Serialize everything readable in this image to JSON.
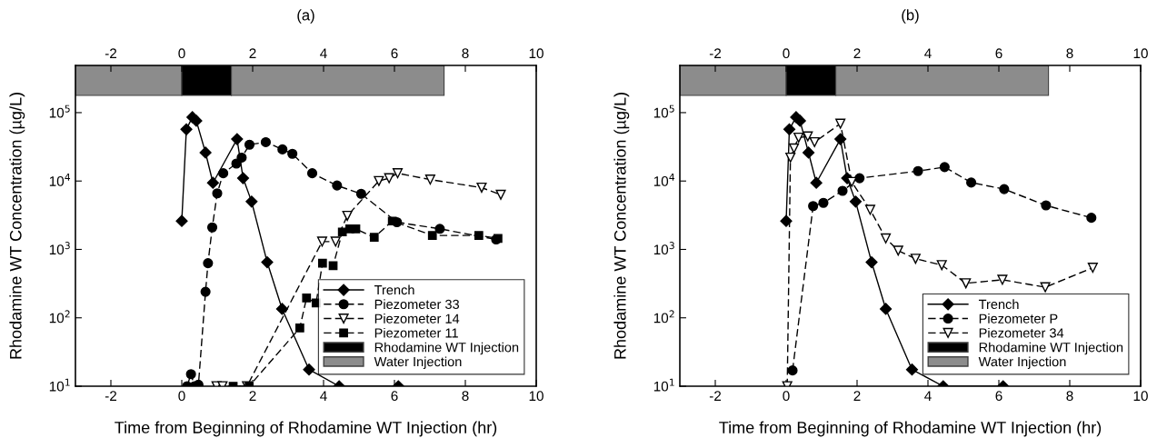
{
  "chart_data": [
    {
      "type": "line",
      "title": "(a)",
      "xlabel": "Time from Beginning of Rhodamine WT Injection (hr)",
      "ylabel": "Rhodamine WT Concentration (µg/L)",
      "log": "y",
      "grid": false,
      "legend": "bottom right",
      "xlim": [
        -3,
        10
      ],
      "xticks": [
        -2,
        0,
        2,
        4,
        6,
        8,
        10
      ],
      "x2lim": [
        -3,
        10
      ],
      "x2ticks": [
        -2,
        0,
        2,
        4,
        6,
        8,
        10
      ],
      "ylim": [
        10,
        490000
      ],
      "yticks": [
        {
          "value": 10,
          "label": "10$^{1}$"
        },
        {
          "value": 100,
          "label": "10$^{2}$"
        },
        {
          "value": 1000,
          "label": "10$^{3}$"
        },
        {
          "value": 10000,
          "label": "10$^{4}$"
        },
        {
          "value": 100000,
          "label": "10$^{5}$"
        }
      ],
      "bands": [
        {
          "axis": "x",
          "from": -3,
          "to": 0,
          "color": "#8c8c8c"
        },
        {
          "axis": "x",
          "from": 0,
          "to": 1.4,
          "label": "Rhodamine WT Injection",
          "color": "#000000"
        },
        {
          "axis": "x",
          "from": 1.4,
          "to": 7.4,
          "label": "Water Injection",
          "color": "#8c8c8c"
        }
      ],
      "series": [
        {
          "name": "Trench",
          "color": "#000000",
          "marker": "diamond",
          "line_style": "solid",
          "x": [
            0,
            0.13,
            0.3,
            0.41,
            0.67,
            0.88,
            1.56,
            1.73,
            1.97,
            2.41,
            2.83,
            3.59,
            4.44,
            6.11
          ],
          "values": [
            2600,
            57000,
            86000,
            76000,
            26000,
            9400,
            41000,
            11000,
            5000,
            650,
            135,
            17.5,
            10,
            10
          ]
        },
        {
          "name": "Piezometer 33",
          "color": "#000000",
          "marker": "circle",
          "line_style": "dashed",
          "x": [
            0.15,
            0.26,
            0.36,
            0.47,
            0.67,
            0.74,
            0.86,
            1.0,
            1.17,
            1.54,
            1.69,
            1.91,
            2.37,
            2.84,
            3.12,
            3.68,
            4.38,
            5.06,
            6.07,
            7.28,
            8.87
          ],
          "values": [
            10,
            15,
            10,
            10.5,
            240,
            630,
            2100,
            6600,
            13000,
            18000,
            22000,
            34000,
            37000,
            29000,
            25000,
            13000,
            8600,
            6500,
            2500,
            2000,
            1400
          ]
        },
        {
          "name": "Piezometer 14",
          "color": "#000000",
          "marker": "triangle",
          "line_style": "dashed",
          "x": [
            0.98,
            1.15,
            1.84,
            3.96,
            4.34,
            4.67,
            5.56,
            5.85,
            6.09,
            7.01,
            8.46,
            9.0
          ],
          "values": [
            10,
            10,
            10,
            1300,
            1300,
            3100,
            10000,
            11000,
            13000,
            10500,
            8000,
            6300
          ]
        },
        {
          "name": "Piezometer 11",
          "color": "#000000",
          "marker": "square",
          "line_style": "dashed",
          "x": [
            1.45,
            1.9,
            3.33,
            3.52,
            3.79,
            3.97,
            4.27,
            4.53,
            4.74,
            4.91,
            5.43,
            5.94,
            7.07,
            8.38,
            8.92
          ],
          "values": [
            10,
            10,
            71,
            195,
            165,
            630,
            580,
            1800,
            2000,
            2000,
            1500,
            2600,
            1600,
            1600,
            1450
          ]
        }
      ]
    },
    {
      "type": "line",
      "title": "(b)",
      "xlabel": "Time from Beginning of Rhodamine WT Injection (hr)",
      "ylabel": "Rhodamine WT Concentration (µg/L)",
      "log": "y",
      "grid": false,
      "legend": "bottom right",
      "xlim": [
        -3,
        10
      ],
      "xticks": [
        -2,
        0,
        2,
        4,
        6,
        8,
        10
      ],
      "x2lim": [
        -3,
        10
      ],
      "x2ticks": [
        -2,
        0,
        2,
        4,
        6,
        8,
        10
      ],
      "ylim": [
        10,
        490000
      ],
      "yticks": [
        {
          "value": 10,
          "label": "10$^{1}$"
        },
        {
          "value": 100,
          "label": "10$^{2}$"
        },
        {
          "value": 1000,
          "label": "10$^{3}$"
        },
        {
          "value": 10000,
          "label": "10$^{4}$"
        },
        {
          "value": 100000,
          "label": "10$^{5}$"
        }
      ],
      "bands": [
        {
          "axis": "x",
          "from": -3,
          "to": 0,
          "color": "#8c8c8c"
        },
        {
          "axis": "x",
          "from": 0,
          "to": 1.4,
          "label": "Rhodamine WT Injection",
          "color": "#000000"
        },
        {
          "axis": "x",
          "from": 1.4,
          "to": 7.4,
          "label": "Water Injection",
          "color": "#8c8c8c"
        }
      ],
      "series": [
        {
          "name": "Trench",
          "color": "#000000",
          "marker": "diamond",
          "line_style": "solid",
          "x": [
            0,
            0.09,
            0.28,
            0.39,
            0.63,
            0.85,
            1.53,
            1.72,
            1.96,
            2.41,
            2.81,
            3.55,
            4.43,
            6.12
          ],
          "values": [
            2600,
            57000,
            86000,
            76000,
            26000,
            9400,
            41000,
            11000,
            5000,
            650,
            135,
            17.5,
            10,
            10
          ]
        },
        {
          "name": "Piezometer P",
          "color": "#000000",
          "marker": "circle",
          "line_style": "dashed",
          "x": [
            0.18,
            0.76,
            1.05,
            1.59,
            2.07,
            3.72,
            4.47,
            5.22,
            6.15,
            7.33,
            8.61
          ],
          "values": [
            17,
            4300,
            4800,
            7200,
            11000,
            14000,
            16000,
            9500,
            7600,
            4400,
            2900
          ]
        },
        {
          "name": "Piezometer 34",
          "color": "#000000",
          "marker": "triangle",
          "line_style": "dashed",
          "x": [
            0.03,
            0.12,
            0.22,
            0.35,
            0.61,
            0.8,
            1.53,
            1.85,
            2.37,
            2.81,
            3.16,
            3.65,
            4.39,
            5.07,
            6.1,
            7.31,
            8.65
          ],
          "values": [
            10,
            22000,
            30000,
            43000,
            45000,
            37000,
            69000,
            9700,
            3800,
            1450,
            960,
            730,
            590,
            320,
            360,
            280,
            540
          ]
        }
      ]
    }
  ]
}
